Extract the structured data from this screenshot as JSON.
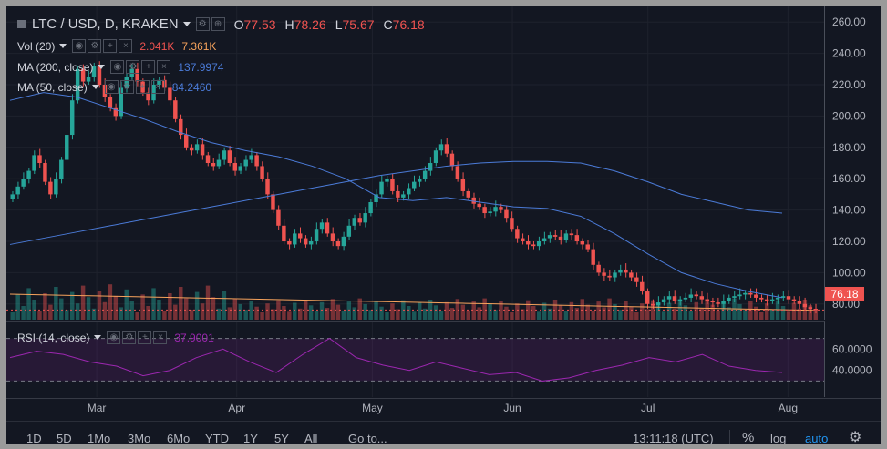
{
  "header": {
    "symbol": "LTC / USD, D, KRAKEN",
    "ohlc": [
      {
        "label": "O",
        "value": "77.53"
      },
      {
        "label": "H",
        "value": "78.26"
      },
      {
        "label": "L",
        "value": "75.67"
      },
      {
        "label": "C",
        "value": "76.18"
      }
    ]
  },
  "indicators": {
    "vol": {
      "label": "Vol (20)",
      "value1": "2.041K",
      "value2": "7.361K",
      "color1": "#ef5350",
      "color2": "#f7a35c"
    },
    "ma200": {
      "label": "MA (200, close)",
      "value": "137.9974",
      "color": "#4b7bd8"
    },
    "ma50": {
      "label": "MA (50, close)",
      "value": "84.2460",
      "color": "#4b7bd8"
    },
    "rsi": {
      "label": "RSI (14, close)",
      "value": "37.9001",
      "color": "#9c27b0"
    }
  },
  "price_axis": {
    "ticks": [
      "260.00",
      "240.00",
      "220.00",
      "200.00",
      "180.00",
      "160.00",
      "140.00",
      "120.00",
      "100.00",
      "80.00"
    ]
  },
  "rsi_axis": {
    "ticks": [
      "60.0000",
      "40.0000"
    ]
  },
  "last_price": "76.18",
  "time_axis": {
    "labels": [
      "Mar",
      "Apr",
      "May",
      "Jun",
      "Jul",
      "Aug"
    ]
  },
  "toolbar": {
    "ranges": [
      "1D",
      "5D",
      "1Mo",
      "3Mo",
      "6Mo",
      "YTD",
      "1Y",
      "5Y",
      "All"
    ],
    "goto": "Go to...",
    "clock": "13:11:18 (UTC)",
    "percent": "%",
    "log": "log",
    "auto": "auto"
  },
  "colors": {
    "up": "#26a69a",
    "down": "#ef5350",
    "background": "#131722",
    "accent": "#2196f3"
  },
  "chart_data": {
    "type": "candlestick",
    "x_range": [
      "2018-02-09",
      "2018-08-09"
    ],
    "y_range": [
      70,
      270
    ],
    "closes": [
      150,
      155,
      160,
      165,
      175,
      170,
      158,
      150,
      160,
      172,
      188,
      210,
      230,
      222,
      225,
      232,
      220,
      212,
      205,
      200,
      218,
      225,
      230,
      222,
      215,
      210,
      220,
      223,
      218,
      210,
      198,
      188,
      180,
      178,
      182,
      175,
      170,
      168,
      172,
      178,
      170,
      165,
      168,
      172,
      175,
      168,
      160,
      150,
      140,
      130,
      120,
      118,
      125,
      122,
      118,
      120,
      128,
      132,
      125,
      120,
      117,
      123,
      130,
      135,
      132,
      138,
      145,
      150,
      158,
      160,
      152,
      148,
      150,
      154,
      158,
      160,
      165,
      170,
      178,
      182,
      176,
      168,
      160,
      152,
      148,
      144,
      142,
      138,
      139,
      142,
      140,
      135,
      128,
      122,
      120,
      118,
      117,
      120,
      122,
      124,
      123,
      121,
      125,
      124,
      120,
      118,
      115,
      105,
      100,
      98,
      97,
      100,
      102,
      100,
      97,
      94,
      88,
      80,
      79,
      81,
      83,
      85,
      82,
      83,
      84,
      86,
      85,
      83,
      82,
      81,
      80,
      82,
      84,
      85,
      86,
      87,
      86,
      84,
      83,
      82,
      83,
      84,
      85,
      83,
      82,
      80,
      78,
      77,
      76
    ],
    "series": [
      {
        "name": "MA (200, close)",
        "values": [
          118,
          122,
          126,
          130,
          134,
          138,
          142,
          146,
          150,
          154,
          158,
          162,
          165,
          168,
          170,
          171,
          171,
          170,
          165,
          158,
          150,
          145,
          140,
          138
        ]
      },
      {
        "name": "MA (50, close)",
        "values": [
          210,
          215,
          212,
          205,
          198,
          190,
          183,
          178,
          174,
          168,
          160,
          148,
          146,
          148,
          145,
          142,
          141,
          136,
          125,
          112,
          100,
          93,
          88,
          84
        ]
      },
      {
        "name": "RSI (14, close)",
        "values": [
          52,
          58,
          55,
          48,
          44,
          35,
          40,
          52,
          60,
          48,
          38,
          55,
          70,
          52,
          45,
          40,
          48,
          42,
          36,
          38,
          30,
          33,
          40,
          45,
          52,
          48,
          55,
          44,
          40,
          38
        ]
      }
    ]
  }
}
